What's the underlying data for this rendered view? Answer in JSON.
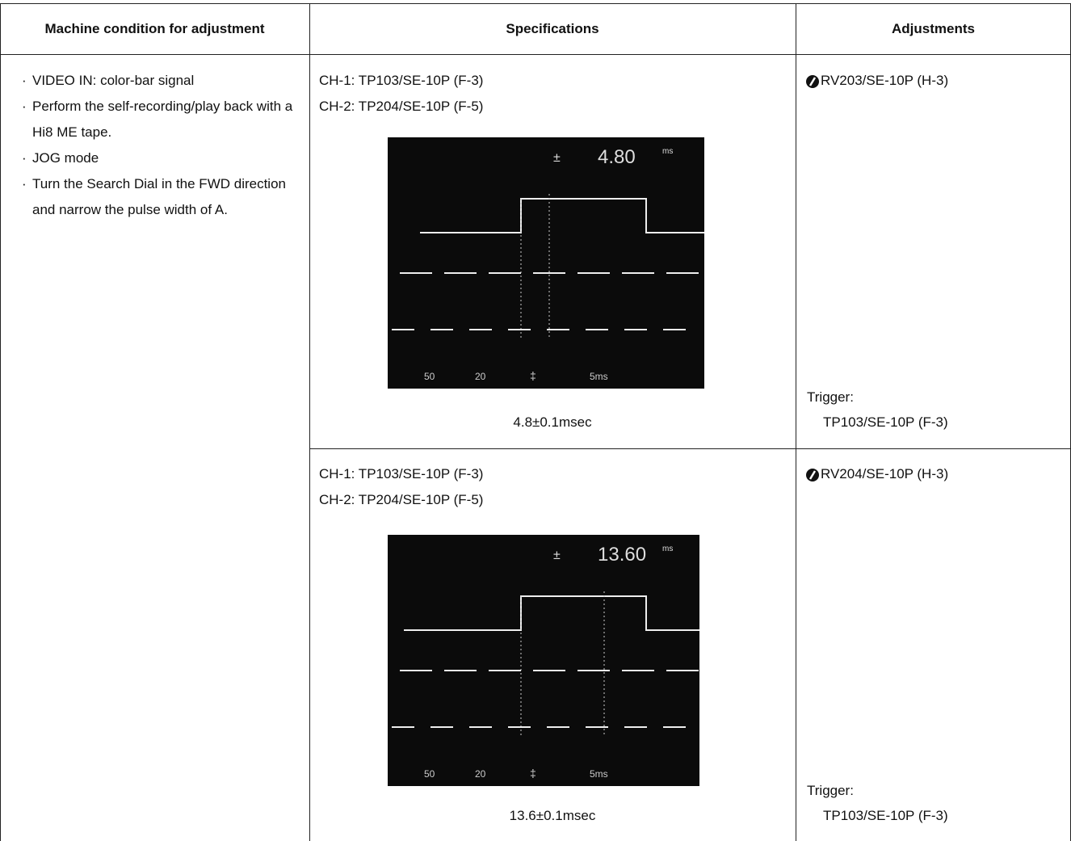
{
  "header": {
    "columns": [
      "Machine condition for adjustment",
      "Specifications",
      "Adjustments"
    ]
  },
  "conditions": [
    "VIDEO IN: color-bar signal",
    "Perform the self-recording/play back with a Hi8 ME tape.",
    "JOG mode",
    "Turn the Search Dial in the FWD direction and narrow the pulse width of A."
  ],
  "rows": [
    {
      "specs": {
        "ch1": "CH-1: TP103/SE-10P (F-3)",
        "ch2": "CH-2: TP204/SE-10P (F-5)",
        "readout": "4.80",
        "readout_unit": "ms",
        "scope_labels": [
          "50",
          "20",
          "5ms"
        ],
        "result": "4.8±0.1msec"
      },
      "adjustment": {
        "control": "RV203/SE-10P (H-3)",
        "trigger_label": "Trigger:",
        "trigger": "TP103/SE-10P (F-3)"
      }
    },
    {
      "specs": {
        "ch1": "CH-1: TP103/SE-10P (F-3)",
        "ch2": "CH-2: TP204/SE-10P (F-5)",
        "readout": "13.60",
        "readout_unit": "ms",
        "scope_labels": [
          "50",
          "20",
          "5ms"
        ],
        "result": "13.6±0.1msec"
      },
      "adjustment": {
        "control": "RV204/SE-10P (H-3)",
        "trigger_label": "Trigger:",
        "trigger": "TP103/SE-10P (F-3)"
      }
    }
  ]
}
